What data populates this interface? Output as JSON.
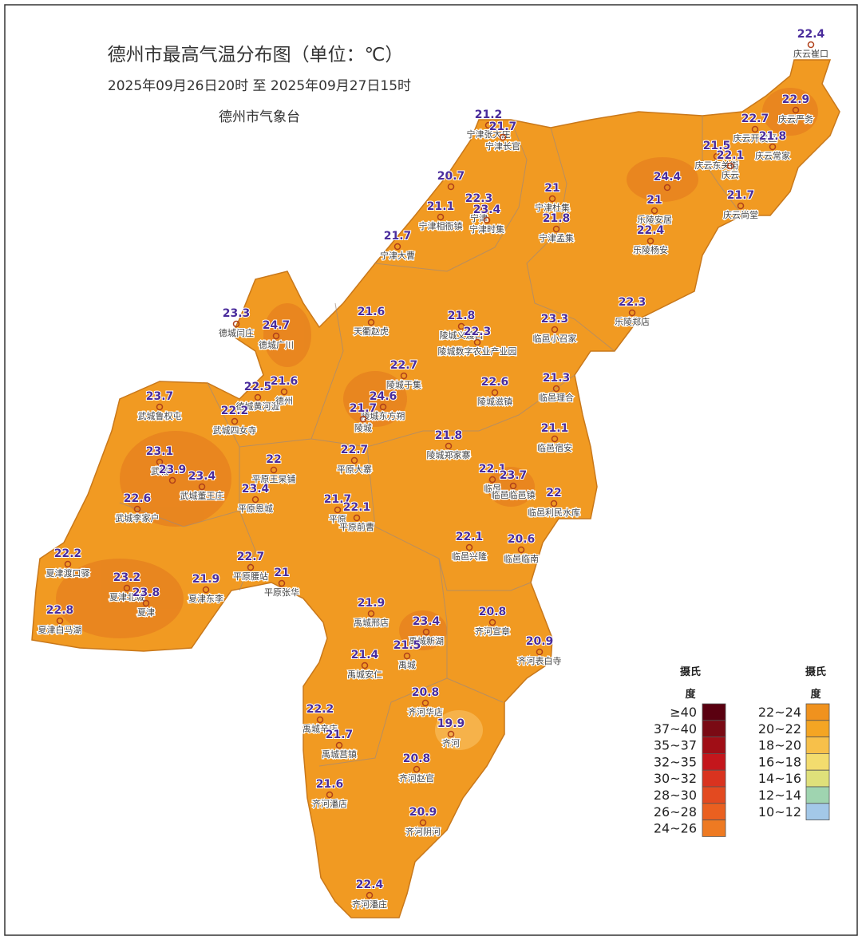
{
  "title": "德州市最高气温分布图（单位：℃）",
  "time_range": "2025年09月26日20时  至  2025年09月27日15时",
  "agency": "德州市气象台",
  "stations": [
    {
      "value": 22.4,
      "name": "庆云崔口"
    },
    {
      "value": 22.9,
      "name": "庆云严务"
    },
    {
      "value": 22.7,
      "name": "庆云开发区"
    },
    {
      "value": 21.8,
      "name": "庆云常家"
    },
    {
      "value": 21.5,
      "name": "庆云东关街"
    },
    {
      "value": 22.1,
      "name": "庆云"
    },
    {
      "value": 21.7,
      "name": "庆云尚堂"
    },
    {
      "value": 24.4,
      "name": null
    },
    {
      "value": 21,
      "name": "乐陵安居"
    },
    {
      "value": 22.4,
      "name": "乐陵杨安"
    },
    {
      "value": 22.3,
      "name": "乐陵郑店"
    },
    {
      "value": 21.2,
      "name": "宁津张大庄"
    },
    {
      "value": 21.7,
      "name": "宁津长官"
    },
    {
      "value": 20.7,
      "name": null
    },
    {
      "value": 21.1,
      "name": "宁津相衙镇"
    },
    {
      "value": 22.3,
      "name": "宁津"
    },
    {
      "value": 23.4,
      "name": "宁津时集"
    },
    {
      "value": 21,
      "name": "宁津杜集"
    },
    {
      "value": 21.8,
      "name": "宁津孟集"
    },
    {
      "value": 21.7,
      "name": "宁津大曹"
    },
    {
      "value": 23.3,
      "name": "德城闫庄"
    },
    {
      "value": 24.7,
      "name": "德城广川"
    },
    {
      "value": 22.5,
      "name": "德城黄河涯"
    },
    {
      "value": 21.6,
      "name": "德州"
    },
    {
      "value": 22.2,
      "name": "武城四女寺"
    },
    {
      "value": 21.6,
      "name": "天衢赵虎"
    },
    {
      "value": 21.8,
      "name": "陵城义渡口"
    },
    {
      "value": 22.3,
      "name": "陵城数字农业产业园"
    },
    {
      "value": 23.3,
      "name": "临邑小召家"
    },
    {
      "value": 22.7,
      "name": "陵城于集"
    },
    {
      "value": 24.6,
      "name": "陵城东方朔"
    },
    {
      "value": 21.7,
      "name": "陵城"
    },
    {
      "value": 22.6,
      "name": "陵城滋镇"
    },
    {
      "value": 21.3,
      "name": "临邑理合"
    },
    {
      "value": 21.8,
      "name": "陵城郑家寨"
    },
    {
      "value": 21.1,
      "name": "临邑宿安"
    },
    {
      "value": 23.7,
      "name": "武城鲁权屯"
    },
    {
      "value": 23.1,
      "name": "武城"
    },
    {
      "value": 23.9,
      "name": null
    },
    {
      "value": 23.4,
      "name": "武城董王庄"
    },
    {
      "value": 22.6,
      "name": "武城李家户"
    },
    {
      "value": 22,
      "name": "平原王杲铺"
    },
    {
      "value": 23.4,
      "name": "平原恩城"
    },
    {
      "value": 22.7,
      "name": "平原大寨"
    },
    {
      "value": 21.7,
      "name": "平原"
    },
    {
      "value": 22.1,
      "name": "平原前曹"
    },
    {
      "value": 22.7,
      "name": "平原腰站"
    },
    {
      "value": 21,
      "name": "平原张华"
    },
    {
      "value": 22.2,
      "name": "夏津渡口驿"
    },
    {
      "value": 23.2,
      "name": "夏津北城"
    },
    {
      "value": 23.8,
      "name": "夏津"
    },
    {
      "value": 21.9,
      "name": "夏津东李"
    },
    {
      "value": 22.8,
      "name": "夏津白马湖"
    },
    {
      "value": 22.1,
      "name": "临邑"
    },
    {
      "value": 23.7,
      "name": "临邑临邑镇"
    },
    {
      "value": 22,
      "name": "临邑利民水库"
    },
    {
      "value": 22.1,
      "name": "临邑兴隆"
    },
    {
      "value": 20.6,
      "name": "临邑临南"
    },
    {
      "value": 21.9,
      "name": "禹城邢店"
    },
    {
      "value": 23.4,
      "name": "禹城新湖"
    },
    {
      "value": 21.5,
      "name": "禹城"
    },
    {
      "value": 21.4,
      "name": "禹城安仁"
    },
    {
      "value": 22.2,
      "name": "禹城辛店"
    },
    {
      "value": 21.7,
      "name": "禹城莒镇"
    },
    {
      "value": 20.8,
      "name": "齐河宣章"
    },
    {
      "value": 20.9,
      "name": "齐河表白寺"
    },
    {
      "value": 20.8,
      "name": "齐河华店"
    },
    {
      "value": 19.9,
      "name": "齐河"
    },
    {
      "value": 20.8,
      "name": "齐河赵官"
    },
    {
      "value": 21.6,
      "name": "齐河潘店"
    },
    {
      "value": 20.9,
      "name": "齐河阴河"
    },
    {
      "value": 22.4,
      "name": "齐河潘庄"
    }
  ],
  "legend": [
    {
      "title": [
        "摄氏",
        "度"
      ],
      "items": [
        {
          "label": "≥40",
          "color": "#5a0010"
        },
        {
          "label": "37~40",
          "color": "#7a0a14"
        },
        {
          "label": "35~37",
          "color": "#a00e16"
        },
        {
          "label": "32~35",
          "color": "#c4161c"
        },
        {
          "label": "30~32",
          "color": "#d9331f"
        },
        {
          "label": "28~30",
          "color": "#e34a20"
        },
        {
          "label": "26~28",
          "color": "#ea6020"
        },
        {
          "label": "24~26",
          "color": "#ee7a22"
        }
      ]
    },
    {
      "title": [
        "摄氏",
        "度"
      ],
      "items": [
        {
          "label": "22~24",
          "color": "#f0921e"
        },
        {
          "label": "20~22",
          "color": "#f4a523"
        },
        {
          "label": "18~20",
          "color": "#f7c04a"
        },
        {
          "label": "16~18",
          "color": "#f3dc6e"
        },
        {
          "label": "14~16",
          "color": "#dfe07a"
        },
        {
          "label": "12~14",
          "color": "#9fd4b0"
        },
        {
          "label": "10~12",
          "color": "#a3c8e8"
        }
      ]
    }
  ]
}
